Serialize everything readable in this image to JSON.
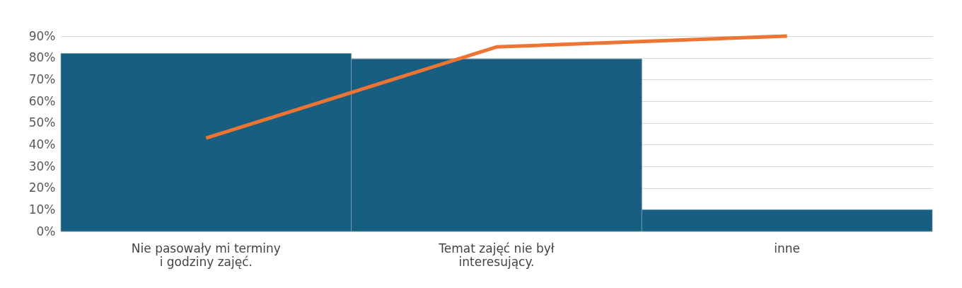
{
  "chart_data": {
    "type": "bar",
    "categories": [
      "Nie pasowały mi terminy\ni godziny zajęć.",
      "Temat zajęć nie był\ninteresujący.",
      "inne"
    ],
    "series": [
      {
        "color": "#175e81",
        "values": [
          82,
          79.5,
          10
        ]
      },
      {
        "type": "line",
        "color": "#ed7432",
        "values": [
          43,
          85,
          90
        ]
      }
    ],
    "ylim": [
      0,
      90
    ],
    "yticks": [
      {
        "value": 0,
        "label": "0%"
      },
      {
        "value": 10,
        "label": "10%"
      },
      {
        "value": 20,
        "label": "20%"
      },
      {
        "value": 30,
        "label": "30%"
      },
      {
        "value": 40,
        "label": "40%"
      },
      {
        "value": 50,
        "label": "50%"
      },
      {
        "value": 60,
        "label": "60%"
      },
      {
        "value": 70,
        "label": "70%"
      },
      {
        "value": 80,
        "label": "80%"
      },
      {
        "value": 90,
        "label": "90%"
      }
    ],
    "grid": "y"
  }
}
